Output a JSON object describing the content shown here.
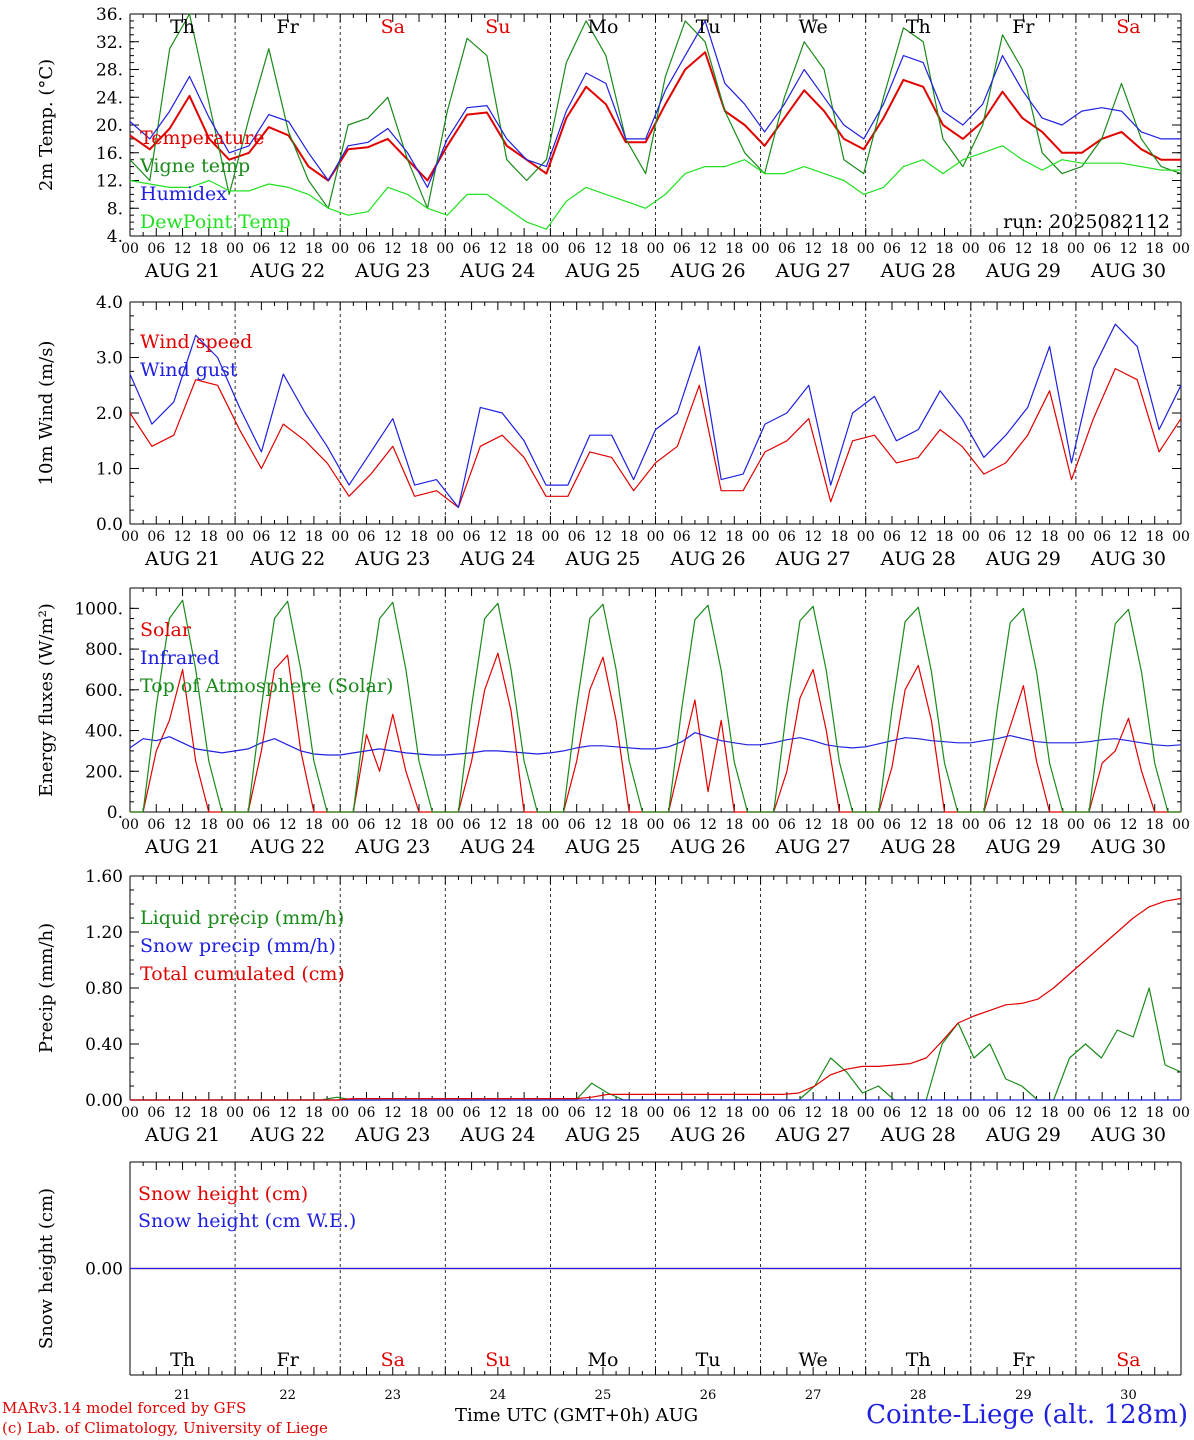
{
  "days": {
    "weekday": [
      "Th",
      "Fr",
      "Sa",
      "Su",
      "Mo",
      "Tu",
      "We",
      "Th",
      "Fr",
      "Sa"
    ],
    "date": [
      "AUG 21",
      "AUG 22",
      "AUG 23",
      "AUG 24",
      "AUG 25",
      "AUG 26",
      "AUG 27",
      "AUG 28",
      "AUG 29",
      "AUG 30"
    ],
    "daynum": [
      "21",
      "22",
      "23",
      "24",
      "25",
      "26",
      "27",
      "28",
      "29",
      "30"
    ],
    "weekend": [
      false,
      false,
      true,
      true,
      false,
      false,
      false,
      false,
      false,
      true
    ],
    "hour_ticks": [
      "00",
      "06",
      "12",
      "18"
    ],
    "final_tick": "00"
  },
  "colors": {
    "red": "#e00000",
    "green": "#1a8a1a",
    "blue": "#2020e0",
    "lightgreen": "#20e020",
    "weekend": "#e00000",
    "axis": "#000000"
  },
  "footer": {
    "credit_line1": "MARv3.14 model forced by GFS",
    "credit_line2": "(c) Lab. of Climatology, University of Liege",
    "xaxis_title": "Time UTC (GMT+0h)",
    "xaxis_unit": "AUG",
    "station": "Cointe-Liege (alt. 128m)"
  },
  "chart_data": [
    {
      "type": "line",
      "ylabel": "2m Temp. (°C)",
      "ylim": [
        4,
        36
      ],
      "yticks": [
        "4.",
        "8.",
        "12.",
        "16.",
        "20.",
        "24.",
        "28.",
        "32.",
        "36."
      ],
      "annotation": "run: 2025082112",
      "x_hours_step": 6,
      "series": [
        {
          "name": "Temperature",
          "color": "red",
          "values": [
            18.5,
            16.5,
            19.5,
            24.2,
            18,
            15,
            16,
            19.7,
            18.5,
            14,
            12,
            16.5,
            16.8,
            18,
            15,
            12,
            17,
            21.5,
            21.8,
            17,
            15,
            13,
            21,
            25.5,
            23,
            17.5,
            17.5,
            23,
            28,
            30.5,
            22,
            20,
            17,
            21,
            25,
            22,
            18,
            16.5,
            21,
            26.5,
            25.5,
            20,
            18,
            20.5,
            24.8,
            21,
            19,
            16,
            16,
            18,
            19,
            16.5,
            15,
            15
          ]
        },
        {
          "name": "Vigne temp",
          "color": "green",
          "values": [
            15,
            12,
            31,
            36,
            23,
            10,
            21,
            31,
            19,
            12,
            8,
            20,
            21,
            24,
            15,
            8,
            22,
            32.5,
            30,
            15,
            12,
            15,
            29,
            35,
            30,
            18,
            13,
            27,
            35,
            32,
            22,
            16,
            13,
            24,
            32,
            28,
            15,
            13,
            24,
            34,
            32,
            18,
            14,
            20,
            33,
            28,
            16,
            13,
            14,
            18,
            26,
            18,
            14,
            13
          ]
        },
        {
          "name": "Humidex",
          "color": "blue",
          "values": [
            20.5,
            18,
            22,
            27,
            21,
            16,
            17,
            21.5,
            20.5,
            16,
            12,
            17,
            17.5,
            19.5,
            16,
            11,
            18,
            22.5,
            22.8,
            18,
            15,
            14,
            22,
            27.5,
            26,
            18,
            18,
            25,
            30,
            35,
            26,
            23,
            19,
            23,
            28,
            24,
            20,
            18,
            23,
            30,
            29,
            22,
            20,
            23,
            30,
            25,
            21,
            20,
            22,
            22.5,
            22,
            19,
            18,
            18
          ]
        },
        {
          "name": "DewPoint Temp",
          "color": "lightgreen",
          "values": [
            12,
            11.5,
            11,
            11,
            12,
            10.5,
            10.5,
            11.5,
            11,
            10,
            8,
            7,
            7.5,
            11,
            10,
            8,
            7,
            10,
            10,
            8,
            6,
            5,
            9,
            11,
            10,
            9,
            8,
            10,
            13,
            14,
            14,
            15,
            13,
            13,
            14,
            13,
            12,
            10,
            11,
            14,
            15,
            13,
            15,
            16,
            17,
            15,
            13.5,
            15,
            14.5,
            14.5,
            14.5,
            14,
            13.5,
            13.5
          ]
        }
      ]
    },
    {
      "type": "line",
      "ylabel": "10m Wind (m/s)",
      "ylim": [
        0,
        4
      ],
      "yticks": [
        "0.0",
        "1.0",
        "2.0",
        "3.0",
        "4.0"
      ],
      "x_hours_step": 6,
      "series": [
        {
          "name": "Wind speed",
          "color": "red",
          "values": [
            2.0,
            1.4,
            1.6,
            2.6,
            2.5,
            1.7,
            1.0,
            1.8,
            1.5,
            1.1,
            0.5,
            0.9,
            1.4,
            0.5,
            0.6,
            0.3,
            1.4,
            1.6,
            1.2,
            0.5,
            0.5,
            1.3,
            1.2,
            0.6,
            1.1,
            1.4,
            2.5,
            0.6,
            0.6,
            1.3,
            1.5,
            1.9,
            0.4,
            1.5,
            1.6,
            1.1,
            1.2,
            1.7,
            1.4,
            0.9,
            1.1,
            1.6,
            2.4,
            0.8,
            1.9,
            2.8,
            2.6,
            1.3,
            1.9
          ]
        },
        {
          "name": "Wind gust",
          "color": "blue",
          "values": [
            2.7,
            1.8,
            2.2,
            3.4,
            3.0,
            2.1,
            1.3,
            2.7,
            2.0,
            1.4,
            0.7,
            1.3,
            1.9,
            0.7,
            0.8,
            0.3,
            2.1,
            2.0,
            1.5,
            0.7,
            0.7,
            1.6,
            1.6,
            0.8,
            1.7,
            2.0,
            3.2,
            0.8,
            0.9,
            1.8,
            2.0,
            2.5,
            0.7,
            2.0,
            2.3,
            1.5,
            1.7,
            2.4,
            1.9,
            1.2,
            1.6,
            2.1,
            3.2,
            1.1,
            2.8,
            3.6,
            3.2,
            1.7,
            2.5
          ]
        }
      ]
    },
    {
      "type": "line",
      "ylabel": "Energy fluxes (W/m²)",
      "ylim": [
        0,
        1100
      ],
      "yticks": [
        "0.",
        "200.",
        "400.",
        "600.",
        "800.",
        "1000."
      ],
      "x_hours_step": 3,
      "series": [
        {
          "name": "Solar",
          "color": "red",
          "values": [
            0,
            0,
            300,
            450,
            700,
            250,
            0,
            0,
            0,
            0,
            300,
            700,
            770,
            300,
            0,
            0,
            0,
            0,
            380,
            200,
            480,
            200,
            0,
            0,
            0,
            0,
            250,
            600,
            780,
            500,
            0,
            0,
            0,
            0,
            250,
            600,
            760,
            450,
            0,
            0,
            0,
            0,
            280,
            550,
            100,
            450,
            0,
            0,
            0,
            0,
            200,
            560,
            700,
            400,
            0,
            0,
            0,
            0,
            220,
            600,
            720,
            450,
            0,
            0,
            0,
            0,
            220,
            420,
            620,
            250,
            0,
            0,
            0,
            0,
            240,
            300,
            460,
            200,
            0,
            0,
            0
          ]
        },
        {
          "name": "Infrared",
          "color": "blue",
          "values": [
            315,
            360,
            350,
            370,
            340,
            310,
            300,
            290,
            300,
            310,
            340,
            360,
            330,
            300,
            285,
            280,
            280,
            290,
            300,
            310,
            300,
            290,
            285,
            280,
            280,
            285,
            290,
            300,
            300,
            295,
            290,
            285,
            290,
            300,
            315,
            325,
            325,
            320,
            315,
            310,
            310,
            320,
            345,
            390,
            370,
            350,
            340,
            330,
            330,
            340,
            355,
            365,
            350,
            330,
            320,
            315,
            320,
            335,
            350,
            365,
            360,
            350,
            345,
            340,
            340,
            350,
            360,
            375,
            360,
            345,
            340,
            340,
            340,
            345,
            355,
            360,
            350,
            340,
            330,
            325,
            330
          ]
        },
        {
          "name": "Top of Atmosphere (Solar)",
          "color": "green",
          "values": [
            0,
            0,
            520,
            950,
            1040,
            700,
            250,
            0,
            0,
            0,
            520,
            950,
            1035,
            700,
            250,
            0,
            0,
            0,
            520,
            950,
            1030,
            700,
            250,
            0,
            0,
            0,
            520,
            950,
            1025,
            700,
            250,
            0,
            0,
            0,
            520,
            950,
            1020,
            700,
            250,
            0,
            0,
            0,
            510,
            945,
            1015,
            695,
            245,
            0,
            0,
            0,
            510,
            940,
            1010,
            695,
            245,
            0,
            0,
            0,
            505,
            935,
            1005,
            690,
            240,
            0,
            0,
            0,
            500,
            930,
            1000,
            690,
            240,
            0,
            0,
            0,
            500,
            925,
            995,
            685,
            240,
            0,
            0
          ]
        }
      ]
    },
    {
      "type": "line",
      "ylabel": "Precip (mm/h)",
      "ylim": [
        0,
        1.6
      ],
      "yticks": [
        "0.00",
        "0.40",
        "0.80",
        "1.20",
        "1.60"
      ],
      "x_hours_step": 6,
      "series": [
        {
          "name": "Liquid precip (mm/h)",
          "color": "green",
          "values": [
            0,
            0,
            0,
            0,
            0,
            0,
            0,
            0,
            0,
            0,
            0,
            0,
            0,
            0.02,
            0,
            0,
            0,
            0,
            0,
            0,
            0,
            0,
            0,
            0,
            0,
            0,
            0,
            0,
            0,
            0.12,
            0.05,
            0,
            0,
            0,
            0,
            0,
            0,
            0,
            0,
            0,
            0,
            0,
            0,
            0.1,
            0.3,
            0.2,
            0.05,
            0.1,
            0,
            0,
            0,
            0.4,
            0.55,
            0.3,
            0.4,
            0.15,
            0.1,
            0,
            0,
            0.3,
            0.4,
            0.3,
            0.5,
            0.45,
            0.8,
            0.25,
            0.2
          ]
        },
        {
          "name": "Snow precip (mm/h)",
          "color": "blue",
          "values": [
            0,
            0,
            0,
            0,
            0,
            0,
            0,
            0,
            0,
            0,
            0,
            0,
            0,
            0,
            0,
            0,
            0,
            0,
            0,
            0,
            0,
            0,
            0,
            0,
            0,
            0,
            0,
            0,
            0,
            0,
            0,
            0,
            0,
            0,
            0,
            0,
            0,
            0,
            0,
            0,
            0,
            0,
            0,
            0,
            0,
            0,
            0,
            0,
            0,
            0,
            0,
            0,
            0,
            0,
            0,
            0,
            0,
            0,
            0,
            0,
            0,
            0,
            0,
            0,
            0,
            0,
            0
          ]
        },
        {
          "name": "Total cumulated (cm)",
          "color": "red",
          "values": [
            0,
            0,
            0,
            0,
            0,
            0,
            0,
            0,
            0,
            0,
            0,
            0,
            0,
            0,
            0.01,
            0.01,
            0.01,
            0.01,
            0.01,
            0.01,
            0.01,
            0.01,
            0.01,
            0.01,
            0.01,
            0.01,
            0.01,
            0.01,
            0.01,
            0.02,
            0.04,
            0.04,
            0.04,
            0.04,
            0.04,
            0.04,
            0.04,
            0.04,
            0.04,
            0.04,
            0.04,
            0.04,
            0.05,
            0.1,
            0.18,
            0.22,
            0.24,
            0.24,
            0.25,
            0.26,
            0.3,
            0.42,
            0.55,
            0.6,
            0.64,
            0.68,
            0.69,
            0.72,
            0.8,
            0.9,
            1.0,
            1.1,
            1.2,
            1.3,
            1.38,
            1.42,
            1.44
          ]
        }
      ]
    },
    {
      "type": "line",
      "ylabel": "Snow height (cm)",
      "ylim": [
        -1,
        1
      ],
      "yticks": [
        "0.00"
      ],
      "x_hours_step": 240,
      "series": [
        {
          "name": "Snow height (cm)",
          "color": "red",
          "values": [
            0,
            0
          ]
        },
        {
          "name": "Snow height (cm W.E.)",
          "color": "blue",
          "values": [
            0,
            0
          ]
        }
      ]
    }
  ]
}
